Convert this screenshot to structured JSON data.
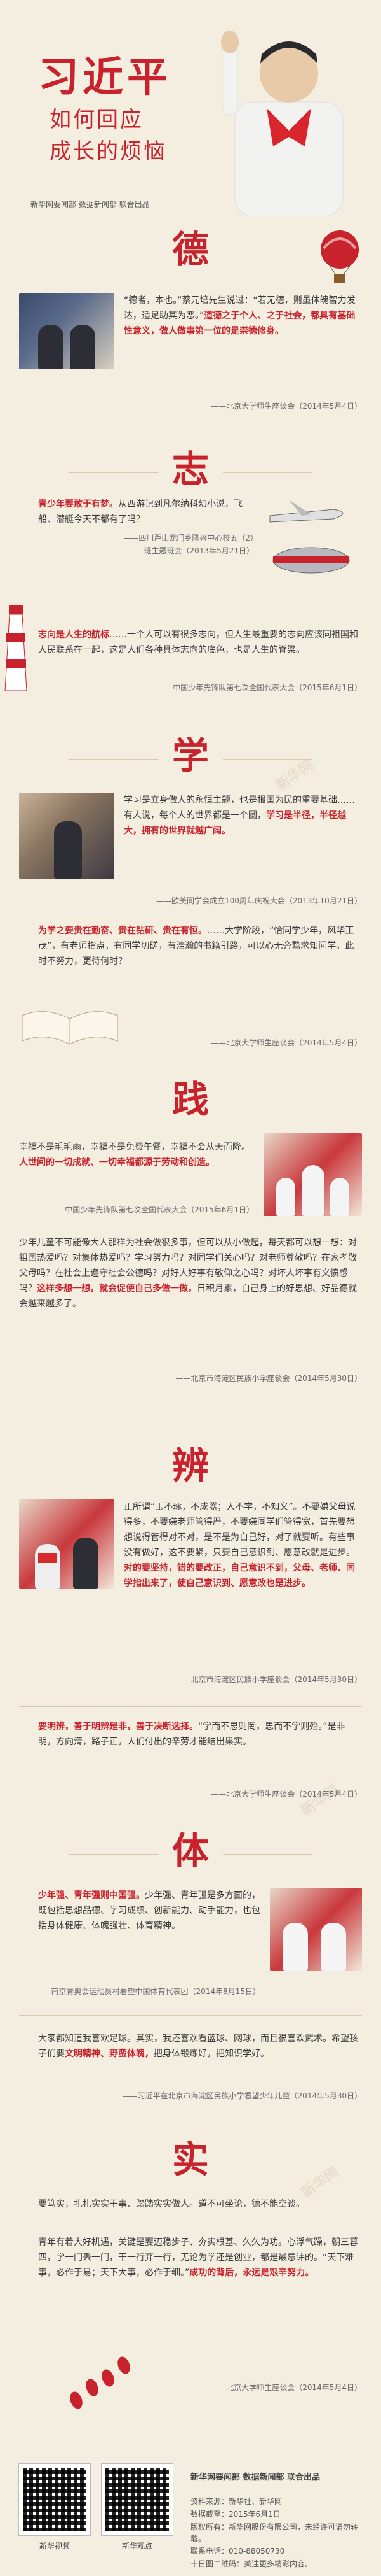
{
  "header": {
    "title": "习近平",
    "subtitle_line1": "如何回应",
    "subtitle_line2": "成长的烦恼",
    "source": "新华网要闻部 数据新闻部 联合出品"
  },
  "watermark": "新华网",
  "sections": [
    {
      "char": "德",
      "quotes": [
        {
          "parts": [
            {
              "t": "“德者，本也。”蔡元培先生说过：“若无德，则虽体魄智力发达，适足助其为恶。”",
              "h": false
            },
            {
              "t": "道德之于个人、之于社会，都具有基础性意义，做人做事第一位的是崇德修身。",
              "h": true
            }
          ],
          "cite": "——北京大学师生座谈会（2014年5月4日）"
        }
      ]
    },
    {
      "char": "志",
      "quotes": [
        {
          "parts": [
            {
              "t": "青少年要敢于有梦。",
              "h": true
            },
            {
              "t": "从西游记到凡尔纳科幻小说，飞船、潜艇今天不都有了吗？",
              "h": false
            }
          ],
          "cite": "——四川芦山龙门乡隆兴中心校五（2）班主题班会（2013年5月21日）"
        },
        {
          "parts": [
            {
              "t": "志向是人生的航标",
              "h": true
            },
            {
              "t": "……一个人可以有很多志向，但人生最重要的志向应该同祖国和人民联系在一起，这是人们各种具体志向的底色，也是人生的脊梁。",
              "h": false
            }
          ],
          "cite": "——中国少年先锋队第七次全国代表大会（2015年6月1日）"
        }
      ]
    },
    {
      "char": "学",
      "quotes": [
        {
          "parts": [
            {
              "t": "学习是立身做人的永恒主题，也是报国为民的重要基础……有人说，每个人的世界都是一个圆，",
              "h": false
            },
            {
              "t": "学习是半径，半径越大，拥有的世界就越广阔。",
              "h": true
            }
          ],
          "cite": "——欧美同学会成立100周年庆祝大会（2013年10月21日）"
        },
        {
          "parts": [
            {
              "t": "为学之要贵在勤奋、贵在钻研、贵在有恒。",
              "h": true
            },
            {
              "t": "……大学阶段，“恰同学少年，风华正茂”，有老师指点，有同学切磋，有浩瀚的书籍引路，可以心无旁骛求知问学。此时不努力，更待何时？",
              "h": false
            }
          ],
          "cite": "——北京大学师生座谈会（2014年5月4日）"
        }
      ]
    },
    {
      "char": "践",
      "quotes": [
        {
          "parts": [
            {
              "t": "幸福不是毛毛雨，幸福不是免费午餐，幸福不会从天而降。",
              "h": false
            },
            {
              "t": "人世间的一切成就、一切幸福都源于劳动和创造。",
              "h": true
            }
          ],
          "cite": "——中国少年先锋队第七次全国代表大会（2015年6月1日）"
        },
        {
          "parts": [
            {
              "t": "少年儿童不可能像大人那样为社会做很多事，但可以从小做起，每天都可以想一想：对祖国热爱吗？对集体热爱吗？学习努力吗？对同学们关心吗？对老师尊敬吗？在家孝敬父母吗？在社会上遵守社会公德吗？对好人好事有敬仰之心吗？对坏人坏事有义愤感吗？",
              "h": false
            },
            {
              "t": "这样多想一想，就会促使自己多做一做，",
              "h": true
            },
            {
              "t": "日积月累，自己身上的好思想、好品德就会越来越多了。",
              "h": false
            }
          ],
          "cite": "——北京市海淀区民族小学座谈会（2014年5月30日）"
        }
      ]
    },
    {
      "char": "辨",
      "quotes": [
        {
          "parts": [
            {
              "t": "正所谓“玉不琢，不成器；人不学，不知义”。不要嫌父母说得多，不要嫌老师管得严，不要嫌同学们管得宽，首先要想想说得管得对不对，是不是为自己好，对了就要听。有些事没有做好，这不要紧，只要自己意识到、愿意改就是进步。",
              "h": false
            },
            {
              "t": "对的要坚持，错的要改正，自己意识不到，父母、老师、同学指出来了，使自己意识到、愿意改也是进步。",
              "h": true
            }
          ],
          "cite": "——北京市海淀区民族小学座谈会（2014年5月30日）"
        },
        {
          "parts": [
            {
              "t": "要明辨，善于明辨是非，善于决断选择。",
              "h": true
            },
            {
              "t": "“学而不思则罔，思而不学则殆。”是非明，方向清，路子正，人们付出的辛劳才能结出果实。",
              "h": false
            }
          ],
          "cite": "——北京大学师生座谈会（2014年5月4日）"
        }
      ]
    },
    {
      "char": "体",
      "quotes": [
        {
          "parts": [
            {
              "t": "少年强、青年强则中国强。",
              "h": true
            },
            {
              "t": "少年强、青年强是多方面的，既包括思想品德、学习成绩、创新能力、动手能力，也包括身体健康、体魄强壮、体育精神。",
              "h": false
            }
          ],
          "cite": "——南京青奥会运动员村看望中国体育代表团（2014年8月15日）"
        },
        {
          "parts": [
            {
              "t": "大家都知道我喜欢足球。其实，我还喜欢看篮球、网球，而且很喜欢武术。希望孩子们要",
              "h": false
            },
            {
              "t": "文明精神、野蛮体魄，",
              "h": true
            },
            {
              "t": "把身体锻炼好，把知识学好。",
              "h": false
            }
          ],
          "cite": "——习近平在北京市海淀区民族小学看望少年儿童（2014年5月30日）"
        }
      ]
    },
    {
      "char": "实",
      "quotes": [
        {
          "parts": [
            {
              "t": "要笃实，扎扎实实干事、踏踏实实做人。道不可坐论，德不能空谈。",
              "h": false
            }
          ],
          "cite": ""
        },
        {
          "parts": [
            {
              "t": "青年有着大好机遇，关键是要迈稳步子、夯实根基、久久为功。心浮气躁，朝三暮四，学一门丢一门，干一行弃一行，无论为学还是创业，都是最忌讳的。“天下难事，必作于易；天下大事，必作于细。”",
              "h": false
            },
            {
              "t": "成功的背后，永远是艰辛努力。",
              "h": true
            }
          ],
          "cite": "——北京大学师生座谈会（2014年5月4日）"
        }
      ]
    }
  ],
  "footer": {
    "brand": "新华网要闻部 数据新闻部 联合出品",
    "qr1_label": "新华视频",
    "qr2_label": "新华观点",
    "info_lines": [
      "资料来源：新华社、新华网",
      "数据截至：2015年6月1日",
      "版权所有：新华网股份有限公司，未经许可请勿转载。",
      "联系电话：010-88050730",
      "十日图二维码：关注更多精彩内容。"
    ]
  }
}
